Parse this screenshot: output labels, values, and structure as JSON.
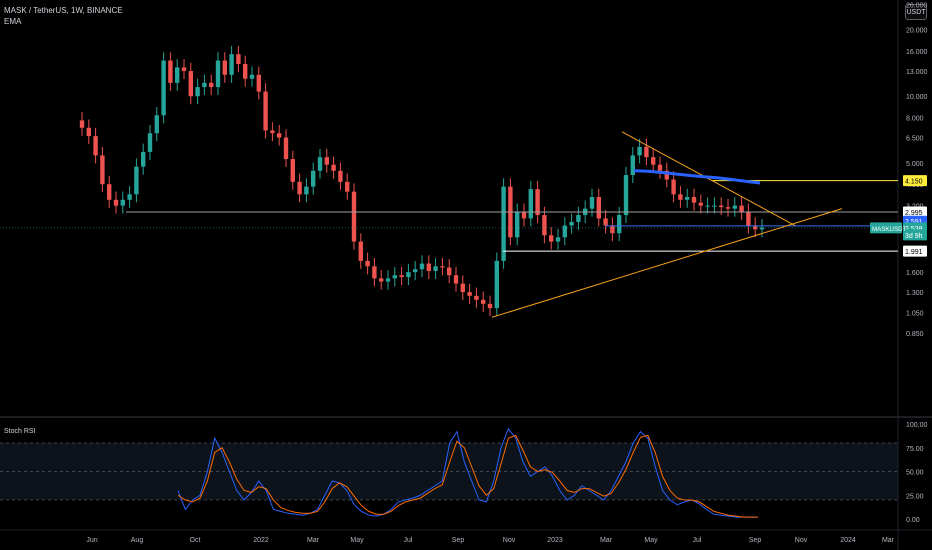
{
  "header": {
    "symbol_line": "MASK / TetherUS, 1W, BINANCE",
    "indicator": "EMA",
    "currency_button": "USDT"
  },
  "colors": {
    "background": "#000000",
    "up": "#26a69a",
    "down": "#ef5350",
    "ema": "#2962ff",
    "trendline": "#f7a21b",
    "support": "#ffffff",
    "resistance": "#ffeb3b",
    "stoch_k": "#2962ff",
    "stoch_d": "#ff6d00"
  },
  "chart_data": [
    {
      "type": "candlestick",
      "title": "MASK / TetherUS, 1W, BINANCE",
      "y_scale": "log",
      "y_ticks": [
        "26.000",
        "20.000",
        "16.000",
        "13.000",
        "10.000",
        "8.000",
        "6.500",
        "5.000",
        "4.000",
        "3.200",
        "2.600",
        "1.600",
        "1.300",
        "1.050",
        "0.850"
      ],
      "x_ticks": [
        "Jun",
        "Aug",
        "Oct",
        "2022",
        "Mar",
        "May",
        "Jul",
        "Sep",
        "Nov",
        "2023",
        "Mar",
        "May",
        "Jul",
        "Sep",
        "Nov",
        "2024",
        "Mar"
      ],
      "price_labels": [
        {
          "text": "4.150",
          "role": "resistance"
        },
        {
          "text": "2.995",
          "role": "level"
        },
        {
          "text": "2.591",
          "role": "last"
        },
        {
          "text": "2.538",
          "role": "current"
        },
        {
          "text": "3d 9h",
          "role": "countdown"
        },
        {
          "text": "1.991",
          "role": "support"
        }
      ],
      "symbol_tag": "MASKUSDT",
      "close": [
        7.2,
        6.6,
        5.4,
        4.0,
        3.4,
        3.2,
        3.4,
        3.6,
        4.8,
        5.6,
        6.8,
        8.2,
        14.5,
        11.5,
        13.5,
        13.0,
        10.0,
        11.0,
        11.5,
        11.0,
        14.5,
        12.5,
        15.5,
        14.0,
        12.0,
        12.5,
        10.5,
        7.0,
        6.8,
        6.5,
        5.2,
        4.1,
        3.6,
        3.9,
        4.6,
        5.3,
        4.9,
        4.6,
        4.1,
        3.7,
        2.2,
        1.8,
        1.7,
        1.5,
        1.45,
        1.5,
        1.55,
        1.52,
        1.6,
        1.65,
        1.75,
        1.62,
        1.7,
        1.68,
        1.55,
        1.42,
        1.3,
        1.25,
        1.2,
        1.15,
        1.1,
        1.8,
        3.9,
        2.3,
        3.0,
        2.8,
        3.8,
        2.9,
        2.35,
        2.2,
        2.3,
        2.6,
        2.7,
        2.9,
        3.1,
        3.5,
        2.8,
        2.6,
        2.4,
        2.9,
        4.4,
        5.4,
        5.9,
        5.3,
        4.9,
        4.6,
        4.2,
        3.6,
        3.4,
        3.5,
        3.3,
        3.2,
        3.2,
        3.2,
        3.15,
        3.1,
        3.2,
        3.0,
        2.6,
        2.5,
        2.55
      ],
      "ema_levels": [
        4.6,
        4.58,
        4.52,
        4.45,
        4.38,
        4.32,
        4.27,
        4.2,
        4.12,
        4.05
      ],
      "trendlines": [
        {
          "name": "descending",
          "from": [
            6.9,
            "2023-03"
          ],
          "to": [
            2.6,
            "2023-10"
          ]
        },
        {
          "name": "ascending",
          "from": [
            1.05,
            "2022-09"
          ],
          "to": [
            3.0,
            "2023-11"
          ]
        }
      ]
    },
    {
      "type": "line",
      "title": "Stoch RSI",
      "ylim": [
        0,
        100
      ],
      "y_ticks": [
        "100.00",
        "75.00",
        "50.00",
        "25.00",
        "0.00"
      ],
      "bands": [
        20,
        80
      ],
      "series": [
        {
          "name": "K",
          "values": [
            30,
            10,
            20,
            25,
            50,
            85,
            70,
            50,
            30,
            20,
            28,
            40,
            30,
            10,
            8,
            6,
            5,
            4,
            6,
            10,
            25,
            40,
            38,
            30,
            15,
            8,
            4,
            3,
            5,
            10,
            18,
            20,
            22,
            25,
            30,
            35,
            40,
            80,
            92,
            60,
            40,
            20,
            18,
            40,
            75,
            95,
            85,
            60,
            45,
            50,
            55,
            45,
            30,
            20,
            25,
            35,
            30,
            25,
            20,
            30,
            45,
            60,
            80,
            92,
            85,
            55,
            30,
            20,
            15,
            18,
            20,
            16,
            10,
            5,
            4,
            3,
            2,
            2,
            2,
            2
          ]
        },
        {
          "name": "D",
          "values": [
            25,
            20,
            18,
            22,
            40,
            70,
            75,
            60,
            42,
            30,
            28,
            34,
            32,
            20,
            12,
            9,
            7,
            6,
            6,
            8,
            18,
            32,
            38,
            34,
            24,
            14,
            8,
            5,
            5,
            8,
            14,
            18,
            20,
            22,
            27,
            32,
            36,
            60,
            82,
            75,
            55,
            35,
            25,
            32,
            58,
            85,
            88,
            72,
            55,
            50,
            52,
            49,
            40,
            30,
            28,
            32,
            32,
            28,
            24,
            27,
            38,
            52,
            70,
            86,
            88,
            70,
            45,
            30,
            22,
            20,
            20,
            18,
            13,
            8,
            6,
            4,
            3,
            2,
            2,
            2
          ]
        }
      ]
    }
  ]
}
